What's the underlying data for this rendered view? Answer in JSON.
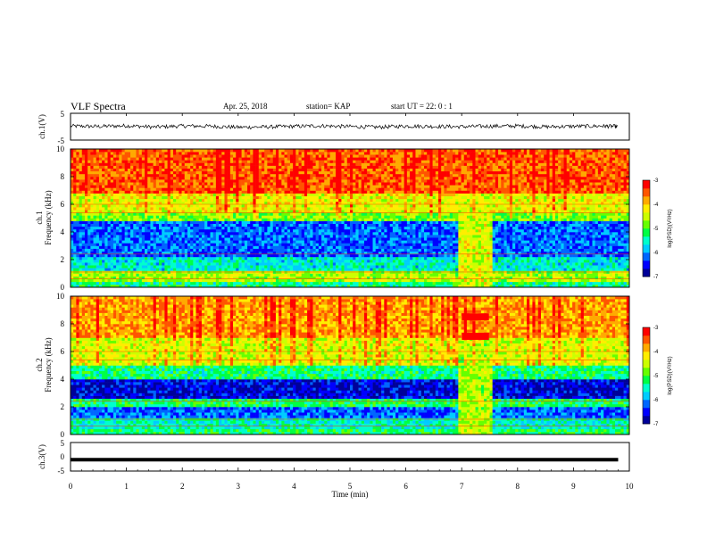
{
  "header": {
    "title": "VLF Spectra",
    "date": "Apr. 25, 2018",
    "station": "station= KAP",
    "start": "start  UT =   22: 0   : 1"
  },
  "colors": {
    "spectrum_scale": [
      "#000099",
      "#0000ff",
      "#0066ff",
      "#00ccff",
      "#00ffcc",
      "#00ff44",
      "#66ff00",
      "#ccff00",
      "#ffee00",
      "#ffaa00",
      "#ff5500",
      "#ff0000"
    ],
    "trace": "#000000"
  },
  "chart_data": [
    {
      "type": "line",
      "panel": "ch1-waveform",
      "ylabel": "ch.1(V)",
      "ylim": [
        -5,
        5
      ],
      "yticks": [
        "5",
        "-5"
      ],
      "xlim": [
        0,
        10
      ],
      "x": [
        0,
        0.5,
        1,
        1.5,
        2,
        2.5,
        3,
        3.5,
        4,
        4.5,
        5,
        5.5,
        6,
        6.5,
        7,
        7.5,
        8,
        8.5,
        9,
        9.5,
        9.8
      ],
      "y": [
        0.5,
        0.2,
        0.8,
        -0.3,
        0.6,
        0.4,
        -0.5,
        -0.2,
        0.3,
        0.7,
        0.1,
        -0.4,
        0.5,
        0.2,
        0.0,
        0.4,
        0.6,
        -0.1,
        0.3,
        0.5,
        0.2
      ]
    },
    {
      "type": "heatmap",
      "panel": "ch1-spectrogram",
      "ylabel": "ch.1\nFrequency (kHz)",
      "ylim": [
        0,
        10
      ],
      "yticks": [
        "0",
        "2",
        "4",
        "6",
        "8",
        "10"
      ],
      "xlim": [
        0,
        9.8
      ],
      "colorbar": {
        "label": "log(PSD)(V²/Hz)",
        "range": [
          -7,
          -3
        ],
        "ticks": [
          "-3",
          "-4",
          "-5",
          "-6",
          "-7"
        ]
      },
      "band_levels": [
        {
          "f_from": 0,
          "f_to": 0.5,
          "level": -5.3
        },
        {
          "f_from": 0.5,
          "f_to": 1.2,
          "level": -4.6
        },
        {
          "f_from": 1.2,
          "f_to": 2.2,
          "level": -5.6
        },
        {
          "f_from": 2.2,
          "f_to": 4.9,
          "level": -6.2
        },
        {
          "f_from": 4.9,
          "f_to": 5.5,
          "level": -4.8
        },
        {
          "f_from": 5.5,
          "f_to": 6.8,
          "level": -4.3
        },
        {
          "f_from": 6.8,
          "f_to": 10,
          "level": -3.5
        }
      ],
      "transient": {
        "t_from": 6.8,
        "t_to": 7.4,
        "level": -4.4
      }
    },
    {
      "type": "heatmap",
      "panel": "ch2-spectrogram",
      "ylabel": "ch.2\nFrequency (kHz)",
      "ylim": [
        0,
        10
      ],
      "yticks": [
        "0",
        "2",
        "4",
        "6",
        "8",
        "10"
      ],
      "xlim": [
        0,
        9.8
      ],
      "colorbar": {
        "label": "log(PSD)(V²/Hz)",
        "range": [
          -7,
          -3
        ],
        "ticks": [
          "-3",
          "-4",
          "-5",
          "-6",
          "-7"
        ]
      },
      "band_levels": [
        {
          "f_from": 0,
          "f_to": 0.5,
          "level": -5.2
        },
        {
          "f_from": 0.5,
          "f_to": 1.2,
          "level": -5.5
        },
        {
          "f_from": 1.2,
          "f_to": 2.1,
          "level": -6.2
        },
        {
          "f_from": 2.1,
          "f_to": 2.7,
          "level": -5.2
        },
        {
          "f_from": 2.7,
          "f_to": 4.0,
          "level": -6.6
        },
        {
          "f_from": 4.0,
          "f_to": 5.0,
          "level": -5.3
        },
        {
          "f_from": 5.0,
          "f_to": 7.0,
          "level": -4.4
        },
        {
          "f_from": 7.0,
          "f_to": 10,
          "level": -3.8
        }
      ],
      "transient": {
        "t_from": 6.8,
        "t_to": 7.4,
        "level": -4.6,
        "red_tones_khz": [
          7.1,
          8.5
        ]
      }
    },
    {
      "type": "line",
      "panel": "ch3-waveform",
      "ylabel": "ch.3(V)",
      "ylim": [
        -5,
        5
      ],
      "yticks": [
        "5",
        "0",
        "-5"
      ],
      "xlim": [
        0,
        10
      ],
      "x": [
        0,
        9.8
      ],
      "y": [
        -1,
        -1
      ],
      "xlabel": "Time (min)",
      "xticks": [
        "0",
        "1",
        "2",
        "3",
        "4",
        "5",
        "6",
        "7",
        "8",
        "9",
        "10"
      ]
    }
  ]
}
